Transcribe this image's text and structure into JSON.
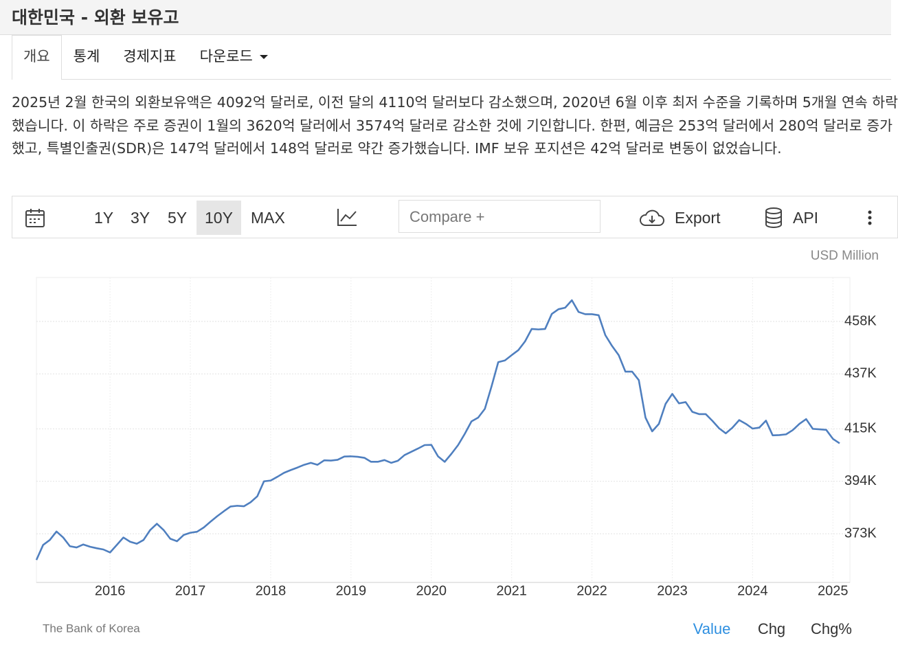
{
  "header": {
    "title": "대한민국 - 외환 보유고"
  },
  "tabs": [
    "개요",
    "통계",
    "경제지표",
    "다운로드"
  ],
  "active_tab": "개요",
  "description": "2025년 2월 한국의 외환보유액은 4092억 달러로, 이전 달의 4110억 달러보다 감소했으며, 2020년 6월 이후 최저 수준을 기록하며 5개월 연속 하락했습니다. 이 하락은 주로 증권이 1월의 3620억 달러에서 3574억 달러로 감소한 것에 기인합니다. 한편, 예금은 253억 달러에서 280억 달러로 증가했고, 특별인출권(SDR)은 147억 달러에서 148억 달러로 약간 증가했습니다. IMF 보유 포지션은 42억 달러로 변동이 없었습니다.",
  "toolbar": {
    "ranges": [
      "1Y",
      "3Y",
      "5Y",
      "10Y",
      "MAX"
    ],
    "active_range": "10Y",
    "compare": "Compare +",
    "export": "Export",
    "api": "API"
  },
  "chart_data": {
    "type": "line",
    "unit": "USD Million",
    "source": "The Bank of Korea",
    "color": "#4f7fbf",
    "grid": true,
    "categories": [
      null,
      null,
      null,
      null,
      null,
      null,
      null,
      null,
      null,
      null,
      null,
      "2016",
      null,
      null,
      null,
      null,
      null,
      null,
      null,
      null,
      null,
      null,
      null,
      "2017",
      null,
      null,
      null,
      null,
      null,
      null,
      null,
      null,
      null,
      null,
      null,
      "2018",
      null,
      null,
      null,
      null,
      null,
      null,
      null,
      null,
      null,
      null,
      null,
      "2019",
      null,
      null,
      null,
      null,
      null,
      null,
      null,
      null,
      null,
      null,
      null,
      "2020",
      null,
      null,
      null,
      null,
      null,
      null,
      null,
      null,
      null,
      null,
      null,
      "2021",
      null,
      null,
      null,
      null,
      null,
      null,
      null,
      null,
      null,
      null,
      null,
      "2022",
      null,
      null,
      null,
      null,
      null,
      null,
      null,
      null,
      null,
      null,
      null,
      "2023",
      null,
      null,
      null,
      null,
      null,
      null,
      null,
      null,
      null,
      null,
      null,
      "2024",
      null,
      null,
      null,
      null,
      null,
      null,
      null,
      null,
      null,
      null,
      null,
      "2025",
      null
    ],
    "values": [
      362500,
      368500,
      370500,
      373900,
      371500,
      368000,
      367500,
      368700,
      367800,
      367200,
      366700,
      365500,
      368500,
      371500,
      369800,
      369000,
      370500,
      374500,
      377000,
      374500,
      371000,
      370000,
      372500,
      373400,
      373800,
      375500,
      377800,
      380000,
      382000,
      383900,
      384200,
      384000,
      385600,
      388000,
      394000,
      394300,
      395800,
      397400,
      398500,
      399500,
      400600,
      401400,
      400600,
      402400,
      402300,
      402600,
      403900,
      404000,
      403800,
      403400,
      401800,
      401800,
      402500,
      401400,
      402200,
      404500,
      405800,
      407100,
      408500,
      408600,
      404000,
      401800,
      405000,
      408500,
      413000,
      418000,
      419500,
      423000,
      432000,
      441700,
      442400,
      444500,
      446500,
      450000,
      455000,
      454800,
      455000,
      461000,
      462900,
      463500,
      466500,
      461800,
      460900,
      460900,
      460500,
      452500,
      448200,
      444500,
      437900,
      437900,
      434500,
      419500,
      414000,
      417000,
      425000,
      429000,
      425200,
      425700,
      421800,
      420900,
      420900,
      418200,
      415200,
      413200,
      415500,
      418500,
      417000,
      415100,
      415500,
      418300,
      412400,
      412500,
      412800,
      414500,
      417000,
      418900,
      415000,
      414800,
      414600,
      411000,
      409200
    ],
    "ylim": [
      353500,
      475600
    ],
    "yticks": [
      {
        "value": 373000,
        "label": "373K"
      },
      {
        "value": 394000,
        "label": "394K"
      },
      {
        "value": 415000,
        "label": "415K"
      },
      {
        "value": 437000,
        "label": "437K"
      },
      {
        "value": 458000,
        "label": "458K"
      }
    ]
  },
  "footer": {
    "views": [
      "Value",
      "Chg",
      "Chg%"
    ],
    "active_view": "Value"
  }
}
